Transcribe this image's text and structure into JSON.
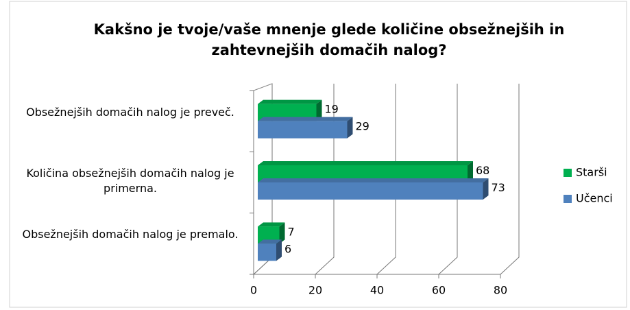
{
  "chart_data": {
    "type": "bar",
    "orientation": "horizontal",
    "title": "Kakšno je tvoje/vaše mnenje glede količine obsežnejših in zahtevnejših domačih nalog?",
    "categories": [
      "Obsežnejših domačih nalog je preveč.",
      "Količina obsežnejših domačih nalog je primerna.",
      "Obsežnejših domačih nalog je premalo."
    ],
    "series": [
      {
        "name": "Starši",
        "color": "#00b050",
        "values": [
          19,
          68,
          7
        ]
      },
      {
        "name": "Učenci",
        "color": "#4f81bd",
        "values": [
          29,
          73,
          6
        ]
      }
    ],
    "xlim": [
      0,
      80
    ],
    "xticks": [
      0,
      20,
      40,
      60,
      80
    ],
    "grid": true,
    "legend": "right"
  }
}
